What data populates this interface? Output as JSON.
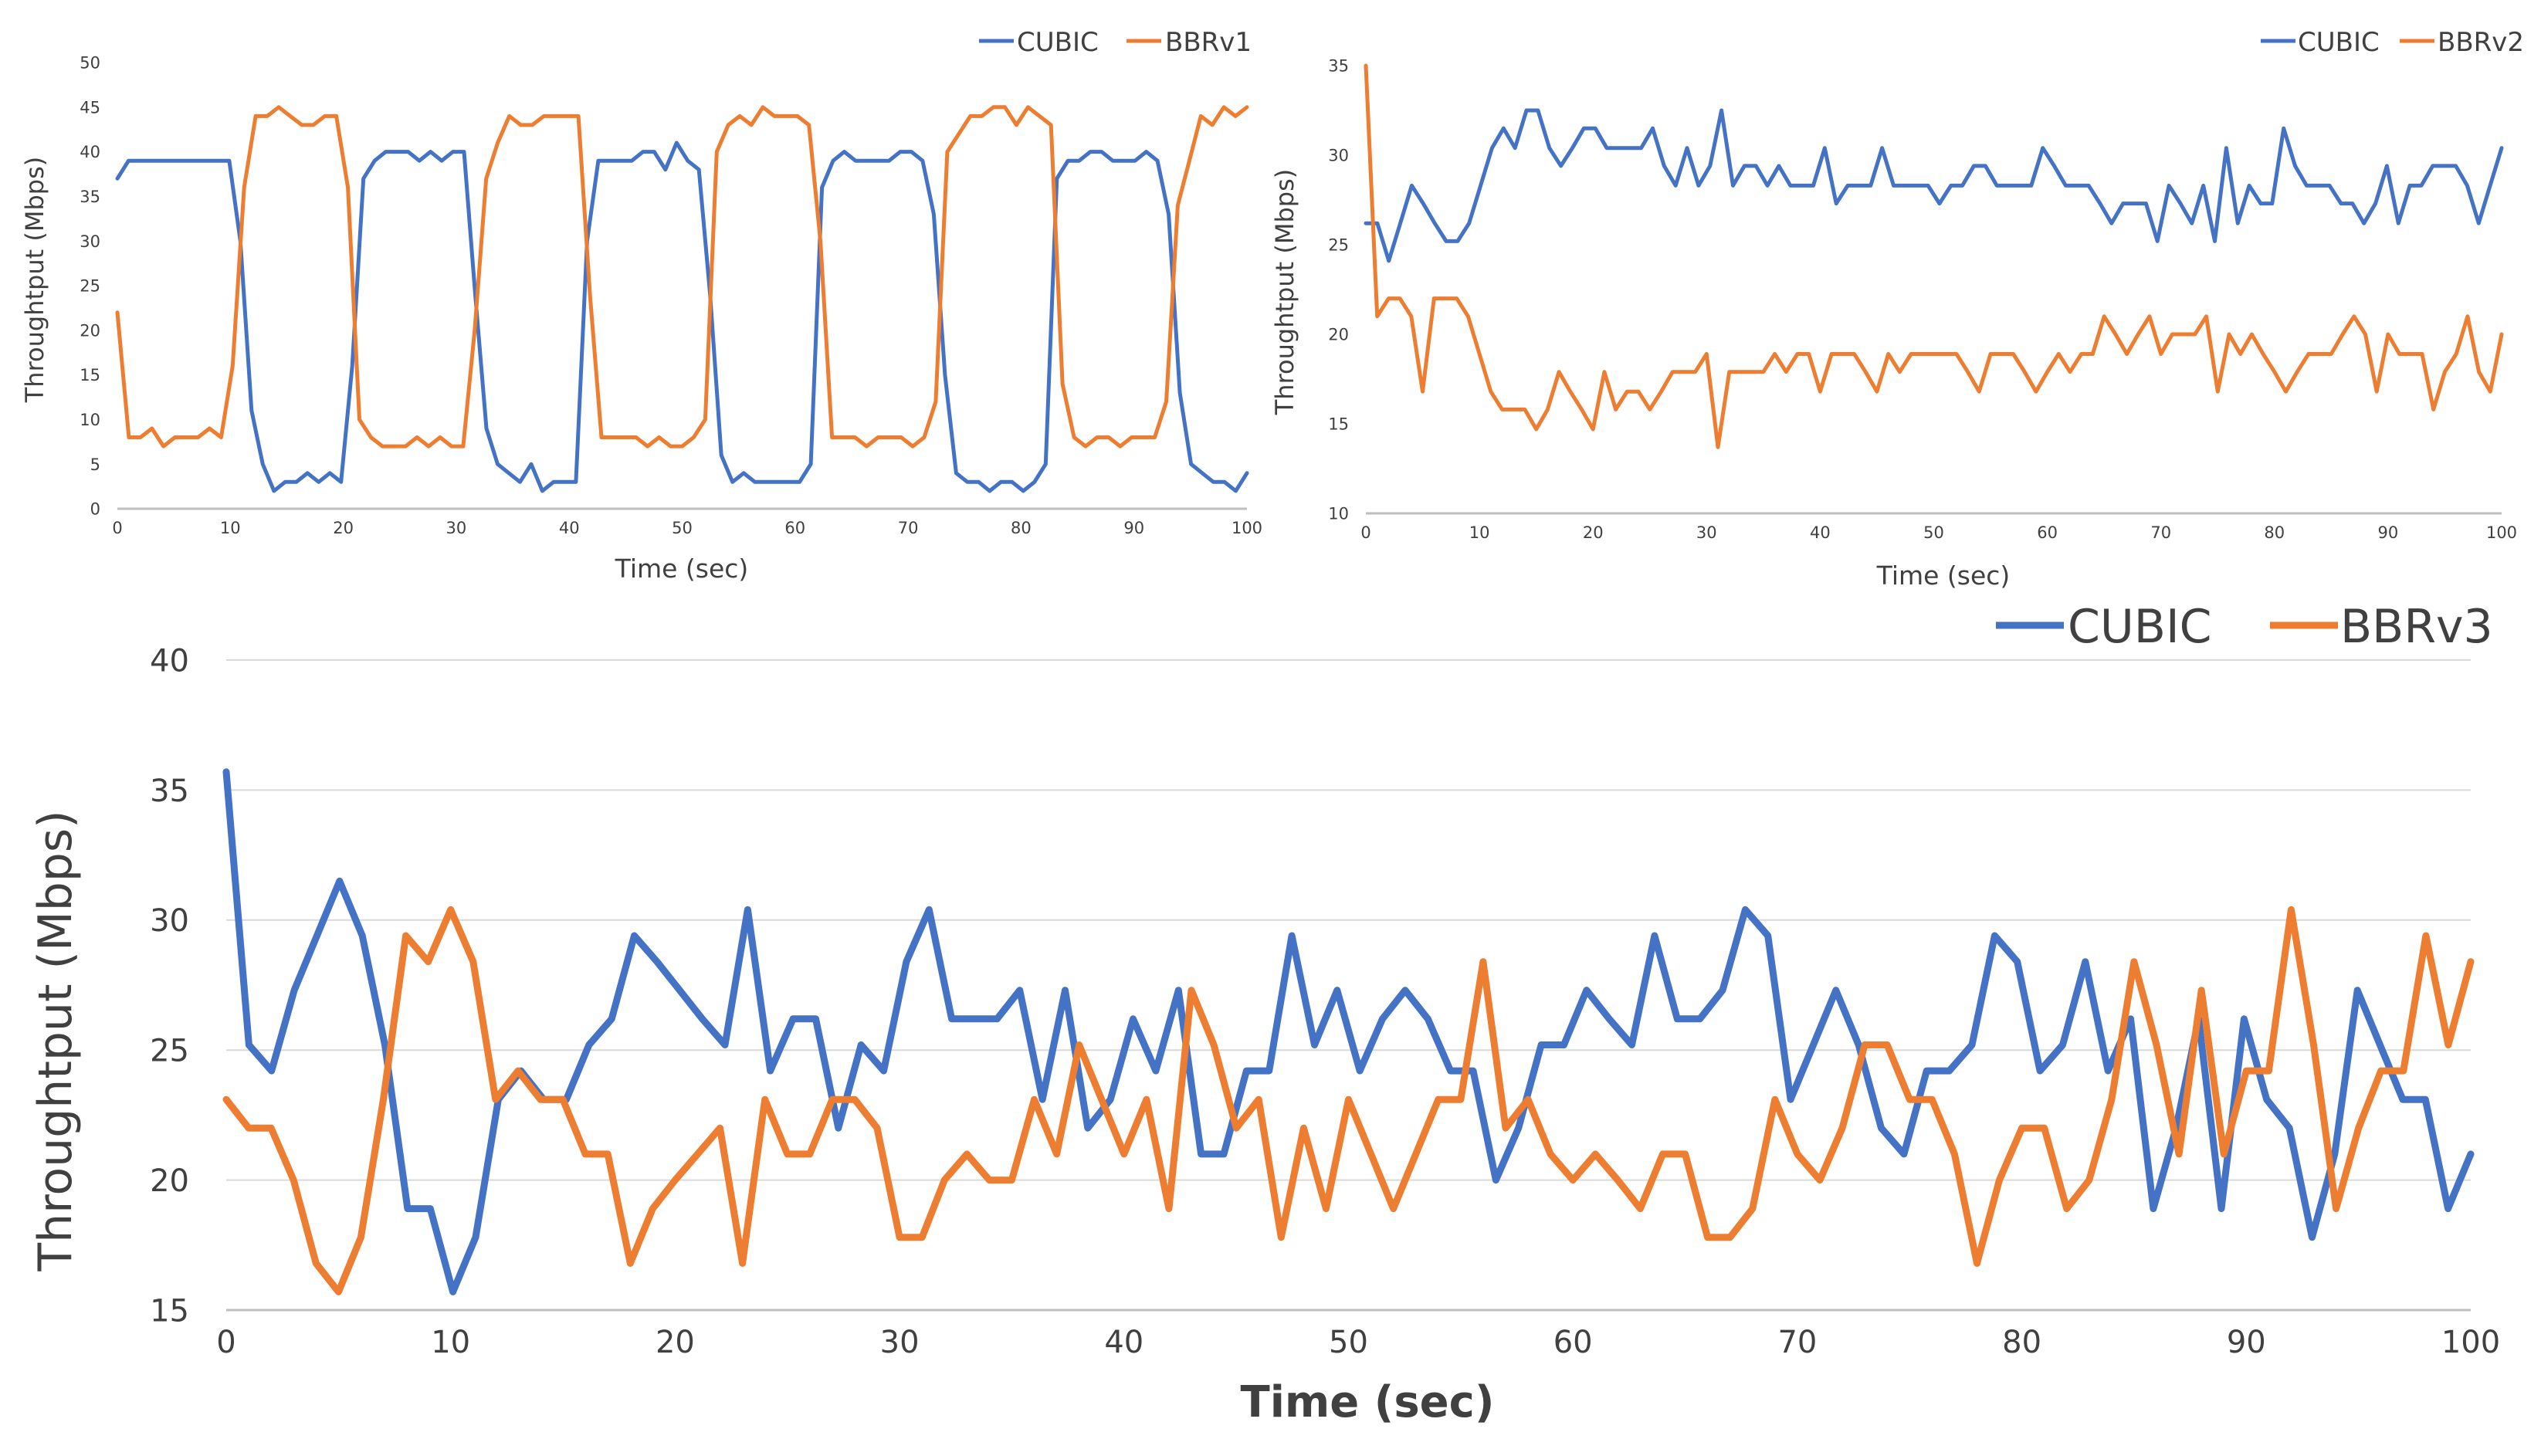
{
  "chart_data": [
    {
      "type": "line",
      "title": "",
      "xlabel": "Time (sec)",
      "ylabel": "Throughtput (Mbps)",
      "xlim": [
        0,
        100
      ],
      "ylim": [
        0,
        50
      ],
      "xticks": [
        0,
        10,
        20,
        30,
        40,
        50,
        60,
        70,
        80,
        90,
        100
      ],
      "yticks": [
        0,
        5,
        10,
        15,
        20,
        25,
        30,
        35,
        40,
        45,
        50
      ],
      "legend_position": "top-right",
      "grid": false,
      "series": [
        {
          "name": "CUBIC",
          "color": "#4472C4",
          "values": [
            37,
            39,
            39,
            39,
            39,
            39,
            39,
            39,
            39,
            39,
            39,
            30,
            11,
            5,
            2,
            3,
            3,
            4,
            3,
            4,
            3,
            16,
            37,
            39,
            40,
            40,
            40,
            39,
            40,
            39,
            40,
            40,
            24,
            9,
            5,
            4,
            3,
            5,
            2,
            3,
            3,
            3,
            30,
            39,
            39,
            39,
            39,
            40,
            40,
            38,
            41,
            39,
            38,
            24,
            6,
            3,
            4,
            3,
            3,
            3,
            3,
            3,
            5,
            36,
            39,
            40,
            39,
            39,
            39,
            39,
            40,
            40,
            39,
            33,
            15,
            4,
            3,
            3,
            2,
            3,
            3,
            2,
            3,
            5,
            37,
            39,
            39,
            40,
            40,
            39,
            39,
            39,
            40,
            39,
            33,
            13,
            5,
            4,
            3,
            3,
            2,
            4
          ]
        },
        {
          "name": "BBRv1",
          "color": "#ED7D31",
          "values": [
            22,
            8,
            8,
            9,
            7,
            8,
            8,
            8,
            9,
            8,
            16,
            36,
            44,
            44,
            45,
            44,
            43,
            43,
            44,
            44,
            36,
            10,
            8,
            7,
            7,
            7,
            8,
            7,
            8,
            7,
            7,
            20,
            37,
            41,
            44,
            43,
            43,
            44,
            44,
            44,
            44,
            24,
            8,
            8,
            8,
            8,
            7,
            8,
            7,
            7,
            8,
            10,
            40,
            43,
            44,
            43,
            45,
            44,
            44,
            44,
            43,
            30,
            8,
            8,
            8,
            7,
            8,
            8,
            8,
            7,
            8,
            12,
            40,
            42,
            44,
            44,
            45,
            45,
            43,
            45,
            44,
            43,
            14,
            8,
            7,
            8,
            8,
            7,
            8,
            8,
            8,
            12,
            34,
            39,
            44,
            43,
            45,
            44,
            45
          ]
        }
      ]
    },
    {
      "type": "line",
      "title": "",
      "xlabel": "Time (sec)",
      "ylabel": "Throughtput (Mbps)",
      "xlim": [
        0,
        100
      ],
      "ylim": [
        10,
        35
      ],
      "xticks": [
        0,
        10,
        20,
        30,
        40,
        50,
        60,
        70,
        80,
        90,
        100
      ],
      "yticks": [
        10,
        15,
        20,
        25,
        30,
        35
      ],
      "legend_position": "top-right",
      "grid": false,
      "series": [
        {
          "name": "CUBIC",
          "color": "#4472C4",
          "values": [
            26.2,
            26.2,
            24.1,
            26.2,
            28.3,
            27.3,
            26.2,
            25.2,
            25.2,
            26.2,
            28.3,
            30.4,
            31.5,
            30.4,
            32.5,
            32.5,
            30.4,
            29.4,
            30.4,
            31.5,
            31.5,
            30.4,
            30.4,
            30.4,
            30.4,
            31.5,
            29.4,
            28.3,
            30.4,
            28.3,
            29.4,
            32.5,
            28.3,
            29.4,
            29.4,
            28.3,
            29.4,
            28.3,
            28.3,
            28.3,
            30.4,
            27.3,
            28.3,
            28.3,
            28.3,
            30.4,
            28.3,
            28.3,
            28.3,
            28.3,
            27.3,
            28.3,
            28.3,
            29.4,
            29.4,
            28.3,
            28.3,
            28.3,
            28.3,
            30.4,
            29.4,
            28.3,
            28.3,
            28.3,
            27.3,
            26.2,
            27.3,
            27.3,
            27.3,
            25.2,
            28.3,
            27.3,
            26.2,
            28.3,
            25.2,
            30.4,
            26.2,
            28.3,
            27.3,
            27.3,
            31.5,
            29.4,
            28.3,
            28.3,
            28.3,
            27.3,
            27.3,
            26.2,
            27.3,
            29.4,
            26.2,
            28.3,
            28.3,
            29.4,
            29.4,
            29.4,
            28.3,
            26.2,
            28.3,
            30.4
          ]
        },
        {
          "name": "BBRv2",
          "color": "#ED7D31",
          "values": [
            35,
            21,
            22,
            22,
            21,
            16.8,
            22,
            22,
            22,
            21,
            18.9,
            16.8,
            15.8,
            15.8,
            15.8,
            14.7,
            15.8,
            17.9,
            16.8,
            15.8,
            14.7,
            17.9,
            15.8,
            16.8,
            16.8,
            15.8,
            16.8,
            17.9,
            17.9,
            17.9,
            18.9,
            13.7,
            17.9,
            17.9,
            17.9,
            17.9,
            18.9,
            17.9,
            18.9,
            18.9,
            16.8,
            18.9,
            18.9,
            18.9,
            17.9,
            16.8,
            18.9,
            17.9,
            18.9,
            18.9,
            18.9,
            18.9,
            18.9,
            17.9,
            16.8,
            18.9,
            18.9,
            18.9,
            17.9,
            16.8,
            17.9,
            18.9,
            17.9,
            18.9,
            18.9,
            21,
            20,
            18.9,
            20,
            21,
            18.9,
            20,
            20,
            20,
            21,
            16.8,
            20,
            18.9,
            20,
            18.9,
            17.9,
            16.8,
            17.9,
            18.9,
            18.9,
            18.9,
            20,
            21,
            20,
            16.8,
            20,
            18.9,
            18.9,
            18.9,
            15.8,
            17.9,
            18.9,
            21,
            17.9,
            16.8,
            20
          ]
        }
      ]
    },
    {
      "type": "line",
      "title": "",
      "xlabel": "Time (sec)",
      "ylabel": "Throughtput (Mbps)",
      "xlim": [
        0,
        100
      ],
      "ylim": [
        15,
        40
      ],
      "xticks": [
        0,
        10,
        20,
        30,
        40,
        50,
        60,
        70,
        80,
        90,
        100
      ],
      "yticks": [
        15,
        20,
        25,
        30,
        35,
        40
      ],
      "legend_position": "top-right",
      "grid": true,
      "series": [
        {
          "name": "CUBIC",
          "color": "#4472C4",
          "values": [
            35.7,
            25.2,
            24.2,
            27.3,
            29.4,
            31.5,
            29.4,
            25.2,
            18.9,
            18.9,
            15.7,
            17.8,
            23.1,
            24.2,
            23.1,
            23.1,
            25.2,
            26.2,
            29.4,
            28.4,
            27.3,
            26.2,
            25.2,
            30.4,
            24.2,
            26.2,
            26.2,
            22,
            25.2,
            24.2,
            28.4,
            30.4,
            26.2,
            26.2,
            26.2,
            27.3,
            23.1,
            27.3,
            22,
            23.1,
            26.2,
            24.2,
            27.3,
            21,
            21,
            24.2,
            24.2,
            29.4,
            25.2,
            27.3,
            24.2,
            26.2,
            27.3,
            26.2,
            24.2,
            24.2,
            20,
            22,
            25.2,
            25.2,
            27.3,
            26.2,
            25.2,
            29.4,
            26.2,
            26.2,
            27.3,
            30.4,
            29.4,
            23.1,
            25.2,
            27.3,
            25.2,
            22,
            21,
            24.2,
            24.2,
            25.2,
            29.4,
            28.4,
            24.2,
            25.2,
            28.4,
            24.2,
            26.2,
            18.9,
            22,
            26.2,
            18.9,
            26.2,
            23.1,
            22,
            17.8,
            21,
            27.3,
            25.2,
            23.1,
            23.1,
            18.9,
            21
          ]
        },
        {
          "name": "BBRv3",
          "color": "#ED7D31",
          "values": [
            23.1,
            22,
            22,
            20,
            16.8,
            15.7,
            17.8,
            23.1,
            29.4,
            28.4,
            30.4,
            28.4,
            23.1,
            24.2,
            23.1,
            23.1,
            21,
            21,
            16.8,
            18.9,
            20,
            21,
            22,
            16.8,
            23.1,
            21,
            21,
            23.1,
            23.1,
            22,
            17.8,
            17.8,
            20,
            21,
            20,
            20,
            23.1,
            21,
            25.2,
            23.1,
            21,
            23.1,
            18.9,
            27.3,
            25.2,
            22,
            23.1,
            17.8,
            22,
            18.9,
            23.1,
            21,
            18.9,
            21,
            23.1,
            23.1,
            28.4,
            22,
            23.1,
            21,
            20,
            21,
            20,
            18.9,
            21,
            21,
            17.8,
            17.8,
            18.9,
            23.1,
            21,
            20,
            22,
            25.2,
            25.2,
            23.1,
            23.1,
            21,
            16.8,
            20,
            22,
            22,
            18.9,
            20,
            23.1,
            28.4,
            25.2,
            21,
            27.3,
            21,
            24.2,
            24.2,
            30.4,
            25.2,
            18.9,
            22,
            24.2,
            24.2,
            29.4,
            25.2,
            28.4
          ]
        }
      ]
    }
  ]
}
